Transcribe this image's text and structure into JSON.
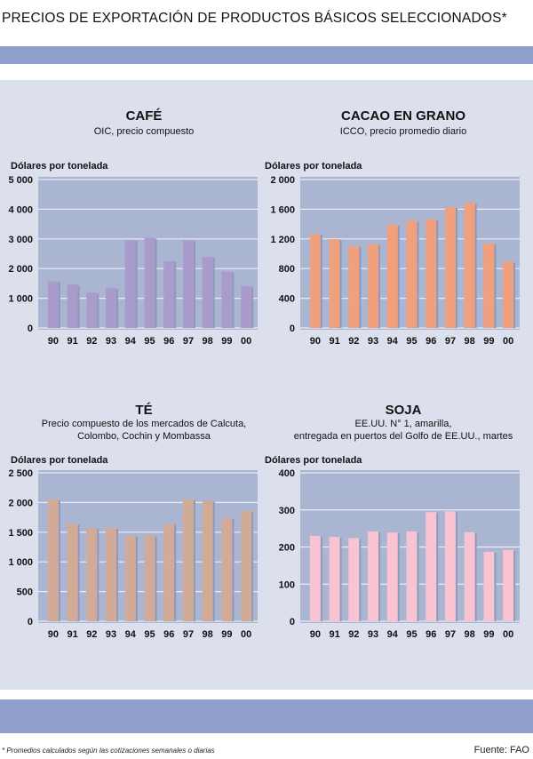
{
  "title": "PRECIOS DE EXPORTACIÓN DE PRODUCTOS BÁSICOS SELECCIONADOS*",
  "footnote": "* Promedios calculados según las cotizaciones semanales o diarias",
  "source": "Fuente: FAO",
  "colors": {
    "band": "#8d9fca",
    "panel": "#dcdfec",
    "plot": "#aab5d1"
  },
  "chart_data": [
    {
      "type": "bar",
      "title": "CAFÉ",
      "subtitle": "OIC, precio compuesto",
      "ylabel": "Dólares por tonelada",
      "color": "#a99bcb",
      "categories": [
        "90",
        "91",
        "92",
        "93",
        "94",
        "95",
        "96",
        "97",
        "98",
        "99",
        "00"
      ],
      "values": [
        1570,
        1460,
        1190,
        1340,
        2960,
        3040,
        2250,
        2950,
        2400,
        1890,
        1410
      ],
      "ylim": [
        0,
        5000
      ],
      "yticks": [
        0,
        1000,
        2000,
        3000,
        4000,
        5000
      ],
      "ytick_labels": [
        "0",
        "1 000",
        "2 000",
        "3 000",
        "4 000",
        "5 000"
      ],
      "grid": true
    },
    {
      "type": "bar",
      "title": "CACAO EN GRANO",
      "subtitle": "ICCO, precio promedio diario",
      "ylabel": "Dólares por tonelada",
      "color": "#f0a07c",
      "categories": [
        "90",
        "91",
        "92",
        "93",
        "94",
        "95",
        "96",
        "97",
        "98",
        "99",
        "00"
      ],
      "values": [
        1265,
        1195,
        1100,
        1130,
        1390,
        1440,
        1465,
        1630,
        1690,
        1140,
        895
      ],
      "ylim": [
        0,
        2000
      ],
      "yticks": [
        0,
        400,
        800,
        1200,
        1600,
        2000
      ],
      "ytick_labels": [
        "0",
        "400",
        "800",
        "1 200",
        "1 600",
        "2 000"
      ],
      "grid": true
    },
    {
      "type": "bar",
      "title": "TÉ",
      "subtitle": "Precio compuesto de los mercados de Calcuta,",
      "subtitle2": "Colombo, Cochin y Mombassa",
      "ylabel": "Dólares por tonelada",
      "color": "#d2aa98",
      "categories": [
        "90",
        "91",
        "92",
        "93",
        "94",
        "95",
        "96",
        "97",
        "98",
        "99",
        "00"
      ],
      "values": [
        2050,
        1640,
        1570,
        1570,
        1440,
        1440,
        1640,
        2050,
        2030,
        1740,
        1860
      ],
      "ylim": [
        0,
        2500
      ],
      "yticks": [
        0,
        500,
        1000,
        1500,
        2000,
        2500
      ],
      "ytick_labels": [
        "0",
        "500",
        "1 000",
        "1 500",
        "2 000",
        "2 500"
      ],
      "grid": true
    },
    {
      "type": "bar",
      "title": "SOJA",
      "subtitle": "EE.UU. N° 1, amarilla,",
      "subtitle2": "entregada en puertos del Golfo de EE.UU., martes",
      "ylabel": "Dólares por tonelada",
      "color": "#f8c4d2",
      "categories": [
        "90",
        "91",
        "92",
        "93",
        "94",
        "95",
        "96",
        "97",
        "98",
        "99",
        "00"
      ],
      "values": [
        230,
        227,
        224,
        242,
        239,
        242,
        294,
        296,
        240,
        187,
        192
      ],
      "ylim": [
        0,
        400
      ],
      "yticks": [
        0,
        100,
        200,
        300,
        400
      ],
      "ytick_labels": [
        "0",
        "100",
        "200",
        "300",
        "400"
      ],
      "grid": true
    }
  ]
}
